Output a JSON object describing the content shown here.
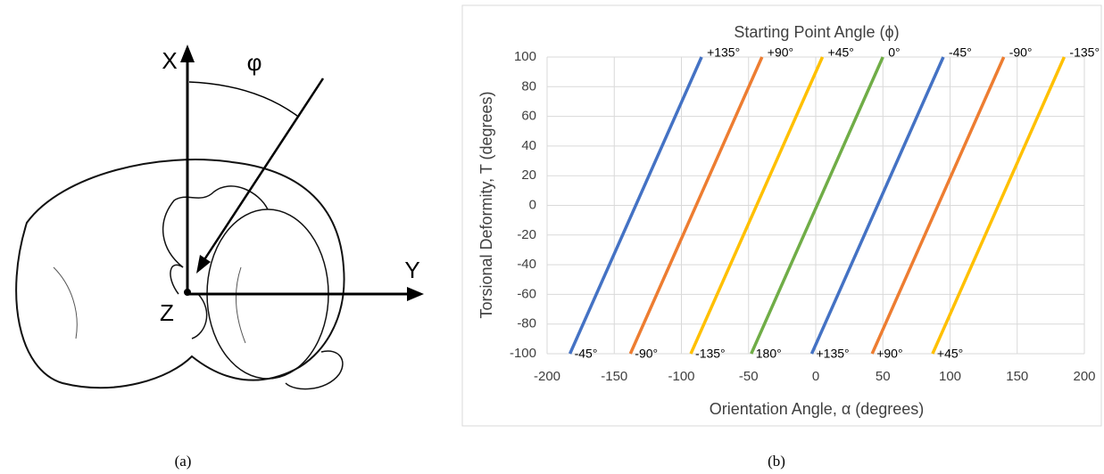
{
  "panel_a": {
    "x_axis_label": "X",
    "y_axis_label": "Y",
    "origin_label": "Z",
    "angle_label": "φ",
    "caption": "(a)"
  },
  "chart_data": {
    "type": "line",
    "caption": "(b)",
    "title": "Starting Point Angle (ϕ)",
    "xlabel": "Orientation Angle, α (degrees)",
    "ylabel": "Torsional Deformity, T (degrees)",
    "xlim": [
      -200,
      200
    ],
    "xticks": [
      -200,
      -150,
      -100,
      -50,
      0,
      50,
      100,
      150,
      200
    ],
    "ylim": [
      -100,
      100
    ],
    "yticks": [
      -100,
      -80,
      -60,
      -40,
      -20,
      0,
      20,
      40,
      60,
      80,
      100
    ],
    "grid": true,
    "series": [
      {
        "color": "#4472c4",
        "x": [
          -183,
          -85
        ],
        "values": [
          -100,
          100
        ],
        "point_labels": [
          "-45°",
          "+135°"
        ]
      },
      {
        "color": "#ed7d31",
        "x": [
          -138,
          -40
        ],
        "values": [
          -100,
          100
        ],
        "point_labels": [
          "-90°",
          "+90°"
        ]
      },
      {
        "color": "#ffc000",
        "x": [
          -93,
          5
        ],
        "values": [
          -100,
          100
        ],
        "point_labels": [
          "-135°",
          "+45°"
        ]
      },
      {
        "color": "#70ad47",
        "x": [
          -48,
          50
        ],
        "values": [
          -100,
          100
        ],
        "point_labels": [
          "180°",
          "0°"
        ]
      },
      {
        "color": "#4472c4",
        "x": [
          -3,
          95
        ],
        "values": [
          -100,
          100
        ],
        "point_labels": [
          "+135°",
          "-45°"
        ]
      },
      {
        "color": "#ed7d31",
        "x": [
          42,
          140
        ],
        "values": [
          -100,
          100
        ],
        "point_labels": [
          "+90°",
          "-90°"
        ]
      },
      {
        "color": "#ffc000",
        "x": [
          87,
          185
        ],
        "values": [
          -100,
          100
        ],
        "point_labels": [
          "+45°",
          "-135°"
        ]
      }
    ]
  }
}
